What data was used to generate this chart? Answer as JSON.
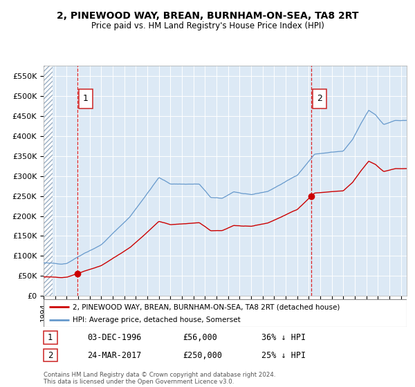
{
  "title": "2, PINEWOOD WAY, BREAN, BURNHAM-ON-SEA, TA8 2RT",
  "subtitle": "Price paid vs. HM Land Registry's House Price Index (HPI)",
  "legend_label_red": "2, PINEWOOD WAY, BREAN, BURNHAM-ON-SEA, TA8 2RT (detached house)",
  "legend_label_blue": "HPI: Average price, detached house, Somerset",
  "sale1_date_label": "03-DEC-1996",
  "sale1_price": 56000,
  "sale1_pct": "36% ↓ HPI",
  "sale2_date_label": "24-MAR-2017",
  "sale2_price": 250000,
  "sale2_pct": "25% ↓ HPI",
  "sale1_x": 1996.92,
  "sale2_x": 2017.23,
  "footer": "Contains HM Land Registry data © Crown copyright and database right 2024.\nThis data is licensed under the Open Government Licence v3.0.",
  "bg_color": "#dce9f5",
  "red_color": "#cc0000",
  "blue_color": "#6699cc",
  "ylim_max": 575000,
  "xmin": 1994,
  "xmax": 2025.5,
  "hpi_key_x": [
    1994.0,
    1995.5,
    1996.0,
    1997.5,
    1999.0,
    2001.5,
    2004.0,
    2005.0,
    2007.5,
    2008.5,
    2009.5,
    2010.5,
    2012.0,
    2013.5,
    2016.0,
    2017.5,
    2019.0,
    2020.0,
    2020.8,
    2021.5,
    2022.2,
    2022.8,
    2023.5,
    2024.5,
    2025.3
  ],
  "hpi_key_y": [
    83000,
    80000,
    82000,
    108000,
    130000,
    200000,
    298000,
    282000,
    282000,
    248000,
    245000,
    262000,
    253000,
    262000,
    302000,
    355000,
    360000,
    362000,
    390000,
    428000,
    463000,
    452000,
    428000,
    438000,
    437000
  ]
}
